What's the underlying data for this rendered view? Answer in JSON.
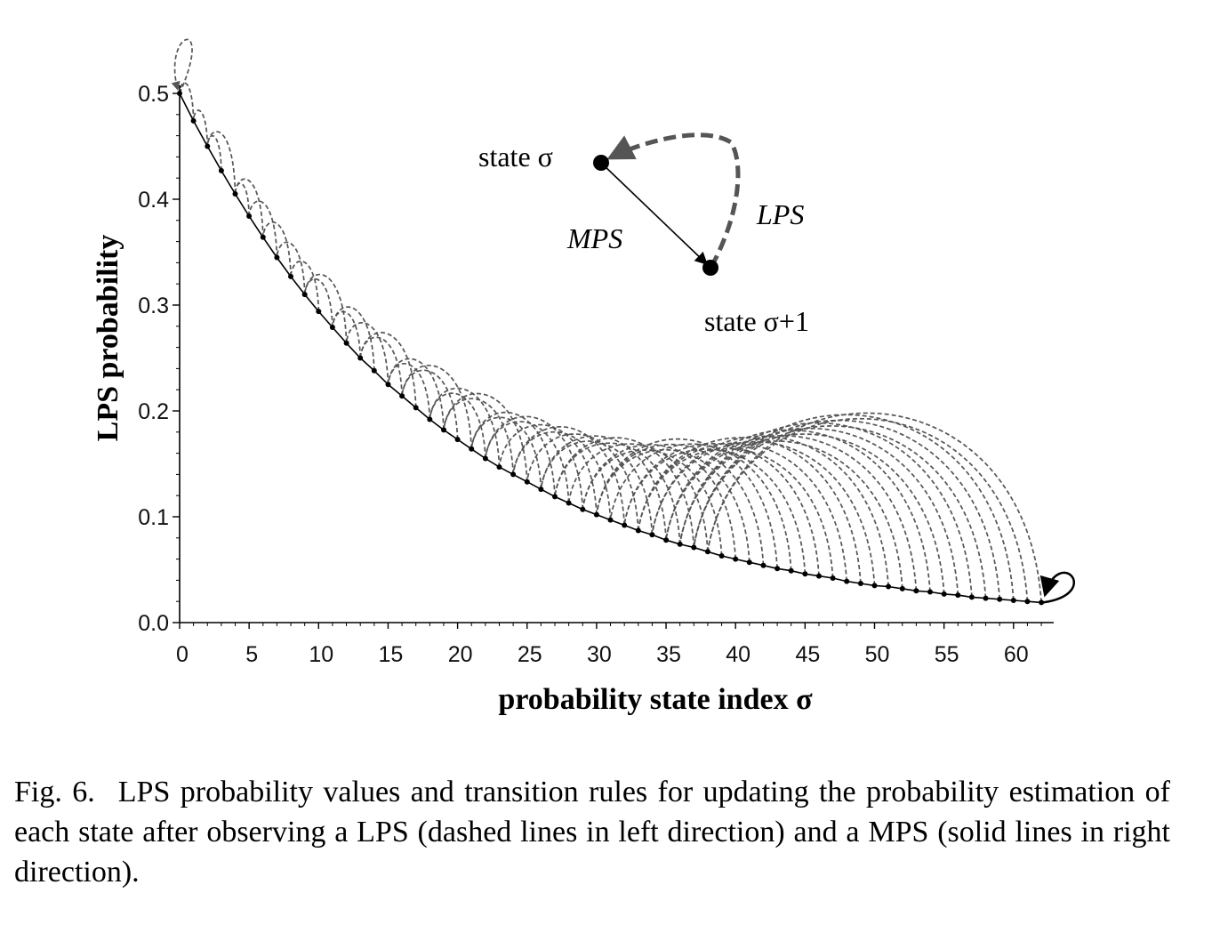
{
  "chart_data": {
    "type": "line",
    "title": "",
    "xlabel": "probability state index σ",
    "ylabel": "LPS probability",
    "xlim": [
      0,
      63
    ],
    "ylim": [
      0,
      0.5
    ],
    "x_ticks": [
      0,
      5,
      10,
      15,
      20,
      25,
      30,
      35,
      40,
      45,
      50,
      55,
      60
    ],
    "x_tick_labels": [
      "0",
      "5",
      "10",
      "15",
      "20",
      "25",
      "30",
      "35",
      "40",
      "45",
      "50",
      "55",
      "60"
    ],
    "y_ticks": [
      0,
      0.1,
      0.2,
      0.3,
      0.4,
      0.5
    ],
    "y_tick_labels": [
      "0.0",
      "0.1",
      "0.2",
      "0.3",
      "0.4",
      "0.5"
    ],
    "grid": false,
    "series": [
      {
        "style": "solid line with point markers (MPS transitions, rightward)",
        "x": [
          0,
          1,
          2,
          3,
          4,
          5,
          6,
          7,
          8,
          9,
          10,
          11,
          12,
          13,
          14,
          15,
          16,
          17,
          18,
          19,
          20,
          21,
          22,
          23,
          24,
          25,
          26,
          27,
          28,
          29,
          30,
          31,
          32,
          33,
          34,
          35,
          36,
          37,
          38,
          39,
          40,
          41,
          42,
          43,
          44,
          45,
          46,
          47,
          48,
          49,
          50,
          51,
          52,
          53,
          54,
          55,
          56,
          57,
          58,
          59,
          60,
          61,
          62
        ],
        "values": [
          0.5,
          0.474,
          0.45,
          0.427,
          0.405,
          0.384,
          0.364,
          0.345,
          0.327,
          0.31,
          0.294,
          0.279,
          0.264,
          0.25,
          0.238,
          0.225,
          0.214,
          0.203,
          0.192,
          0.182,
          0.173,
          0.164,
          0.155,
          0.147,
          0.14,
          0.133,
          0.126,
          0.119,
          0.113,
          0.107,
          0.102,
          0.097,
          0.092,
          0.087,
          0.083,
          0.078,
          0.074,
          0.071,
          0.067,
          0.063,
          0.06,
          0.057,
          0.054,
          0.051,
          0.049,
          0.046,
          0.044,
          0.042,
          0.039,
          0.037,
          0.035,
          0.034,
          0.032,
          0.03,
          0.029,
          0.027,
          0.026,
          0.024,
          0.023,
          0.022,
          0.021,
          0.02,
          0.019
        ]
      },
      {
        "style": "dashed arcs (LPS transitions, leftward)",
        "lps_next_state": [
          0,
          0,
          1,
          2,
          2,
          4,
          4,
          5,
          6,
          7,
          8,
          9,
          9,
          11,
          11,
          12,
          13,
          13,
          15,
          15,
          16,
          16,
          18,
          18,
          19,
          19,
          21,
          21,
          22,
          22,
          23,
          24,
          24,
          25,
          26,
          26,
          27,
          27,
          28,
          29,
          29,
          30,
          30,
          30,
          31,
          32,
          32,
          33,
          33,
          33,
          34,
          34,
          35,
          35,
          35,
          36,
          36,
          36,
          37,
          37,
          37,
          38,
          38
        ]
      }
    ],
    "annotations": [
      {
        "text": "state σ"
      },
      {
        "text": "MPS"
      },
      {
        "text": "LPS"
      },
      {
        "text": "state σ+1"
      }
    ]
  },
  "caption": {
    "figure_number": "Fig. 6.",
    "text": "LPS probability values and transition rules for updating the probability estimation of each state after observing a LPS (dashed lines in left direction) and a MPS (solid lines in right direction)."
  }
}
